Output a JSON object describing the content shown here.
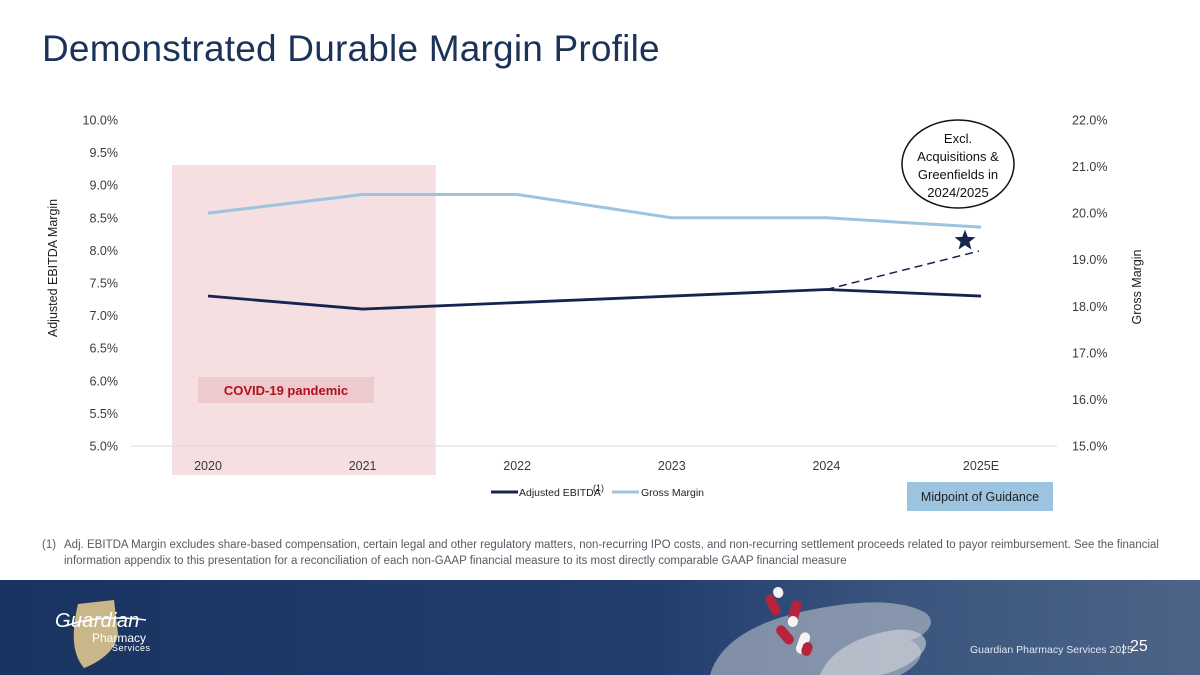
{
  "title": "Demonstrated Durable Margin Profile",
  "chart_data": {
    "type": "line",
    "categories": [
      "2020",
      "2021",
      "2022",
      "2023",
      "2024",
      "2025E"
    ],
    "left_axis": {
      "label": "Adjusted EBITDA Margin",
      "ylim": [
        5.0,
        10.0
      ],
      "ticks": [
        "5.0%",
        "5.5%",
        "6.0%",
        "6.5%",
        "7.0%",
        "7.5%",
        "8.0%",
        "8.5%",
        "9.0%",
        "9.5%",
        "10.0%"
      ]
    },
    "right_axis": {
      "label": "Gross Margin",
      "ylim": [
        15.0,
        22.0
      ],
      "ticks": [
        "15.0%",
        "16.0%",
        "17.0%",
        "18.0%",
        "19.0%",
        "20.0%",
        "21.0%",
        "22.0%"
      ]
    },
    "series": [
      {
        "name": "Adjusted EBITDA",
        "superscript": "(1)",
        "axis": "left",
        "color": "#15254f",
        "values": [
          7.3,
          7.1,
          7.2,
          7.3,
          7.4,
          7.3
        ]
      },
      {
        "name": "Gross Margin",
        "axis": "right",
        "color": "#9cc3e0",
        "values": [
          20.0,
          20.4,
          20.4,
          19.9,
          19.9,
          19.7
        ]
      }
    ],
    "dashed_projection": {
      "from_category": "2024",
      "from_value": 7.4,
      "to_category": "2025E",
      "to_value": 7.99,
      "axis": "left",
      "color": "#15254f"
    },
    "star_marker": {
      "category": "2025E",
      "value": 8.15,
      "axis": "left",
      "color": "#15254f"
    },
    "shaded_region": {
      "from_category": "2020",
      "to_category": "2021",
      "label": "COVID-19 pandemic",
      "color": "#f6dfe1",
      "label_color": "#b0111d"
    },
    "callout": {
      "lines": [
        "Excl.",
        "Acquisitions &",
        "Greenfields in",
        "2024/2025"
      ]
    },
    "guidance_box": {
      "label": "Midpoint of Guidance",
      "color": "#9cc3e0"
    },
    "legend_position": "bottom-center"
  },
  "footnote": {
    "number": "(1)",
    "text": "Adj. EBITDA Margin excludes share-based compensation, certain legal and other regulatory matters, non-recurring IPO costs, and non-recurring settlement proceeds related to payor reimbursement. See the financial information appendix to this presentation for a reconciliation of each non-GAAP financial measure to its most directly comparable GAAP financial measure"
  },
  "footer": {
    "logo_word1": "Guardian",
    "logo_word2": "Pharmacy",
    "logo_word3": "Services",
    "company": "Guardian Pharmacy Services 2025",
    "separator": "|",
    "page_number": "25"
  }
}
